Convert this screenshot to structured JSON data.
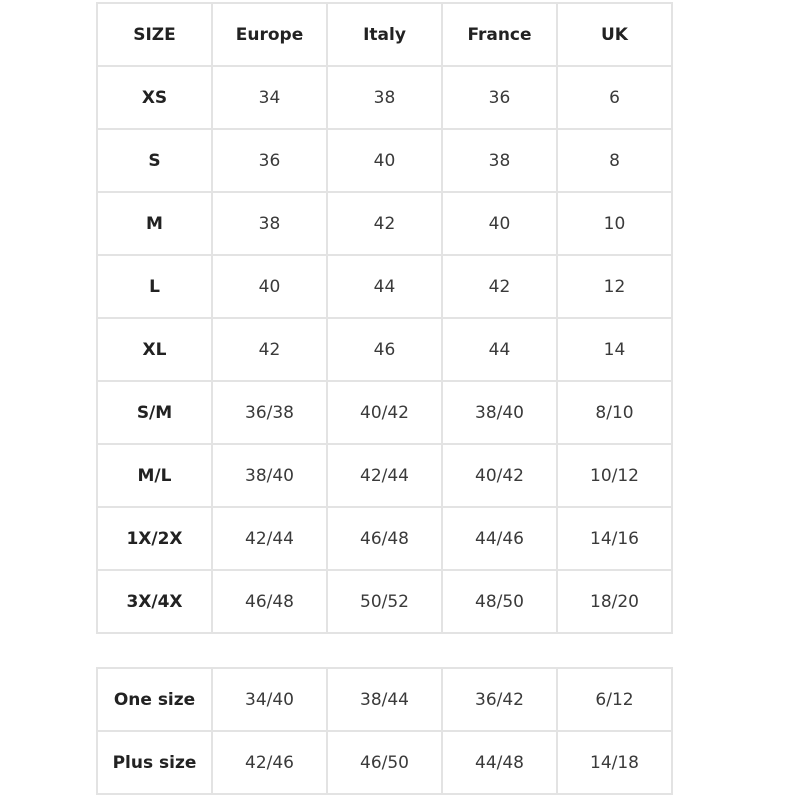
{
  "main_table": {
    "headers": [
      "SIZE",
      "Europe",
      "Italy",
      "France",
      "UK"
    ],
    "rows": [
      [
        "XS",
        "34",
        "38",
        "36",
        "6"
      ],
      [
        "S",
        "36",
        "40",
        "38",
        "8"
      ],
      [
        "M",
        "38",
        "42",
        "40",
        "10"
      ],
      [
        "L",
        "40",
        "44",
        "42",
        "12"
      ],
      [
        "XL",
        "42",
        "46",
        "44",
        "14"
      ],
      [
        "S/M",
        "36/38",
        "40/42",
        "38/40",
        "8/10"
      ],
      [
        "M/L",
        "38/40",
        "42/44",
        "40/42",
        "10/12"
      ],
      [
        "1X/2X",
        "42/44",
        "46/48",
        "44/46",
        "14/16"
      ],
      [
        "3X/4X",
        "46/48",
        "50/52",
        "48/50",
        "18/20"
      ]
    ]
  },
  "extra_table": {
    "rows": [
      [
        "One size",
        "34/40",
        "38/44",
        "36/42",
        "6/12"
      ],
      [
        "Plus size",
        "42/46",
        "46/50",
        "44/48",
        "14/18"
      ]
    ]
  },
  "colors": {
    "border": "#e3e3e3",
    "text": "#3a3a3a",
    "header_text": "#222222"
  }
}
